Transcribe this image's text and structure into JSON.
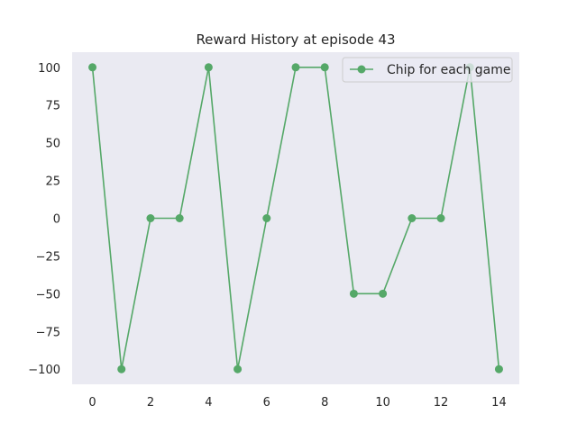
{
  "chart_data": {
    "type": "line",
    "title": "Reward History at episode 43",
    "xlabel": "",
    "ylabel": "",
    "x": [
      0,
      1,
      2,
      3,
      4,
      5,
      6,
      7,
      8,
      9,
      10,
      11,
      12,
      13,
      14
    ],
    "series": [
      {
        "name": "Chip for each game",
        "values": [
          100,
          -100,
          0,
          0,
          100,
          -100,
          0,
          100,
          100,
          -50,
          -50,
          0,
          0,
          100,
          -100
        ],
        "color": "#55a868",
        "marker": "circle"
      }
    ],
    "xlim": [
      -0.7,
      14.7
    ],
    "ylim": [
      -110,
      110
    ],
    "x_ticks": [
      0,
      2,
      4,
      6,
      8,
      10,
      12,
      14
    ],
    "x_tick_labels": [
      "0",
      "2",
      "4",
      "6",
      "8",
      "10",
      "12",
      "14"
    ],
    "y_ticks": [
      100,
      75,
      50,
      25,
      0,
      -25,
      -50,
      -75,
      -100
    ],
    "y_tick_labels": [
      "100",
      "75",
      "50",
      "25",
      "0",
      "−25",
      "−50",
      "−75",
      "−100"
    ],
    "grid": false,
    "legend_position": "top-right",
    "background_color": "#eaeaf2"
  }
}
